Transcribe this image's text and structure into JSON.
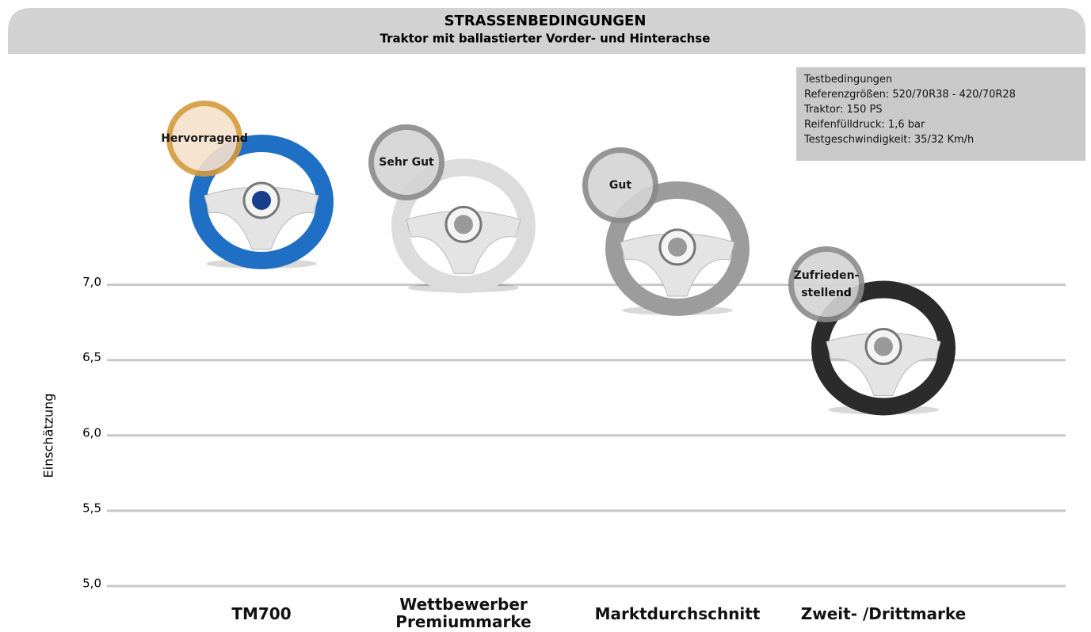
{
  "chart_data": {
    "type": "wheel-scatter",
    "title": "STRASSENBEDINGUNGEN",
    "subtitle": "Traktor mit ballastierter Vorder- und Hinterachse",
    "y_label": "Einschätzung",
    "categories": [
      "TM700",
      "Wettbewerber\nPremiummarke",
      "Marktdurchschnitt",
      "Zweit- /Drittmarke"
    ],
    "values": [
      7.55,
      7.39,
      7.24,
      6.58
    ],
    "ratings": [
      "Hervorragend",
      "Sehr Gut",
      "Gut",
      "Zufrieden-\nstellend"
    ],
    "colors": [
      "#1f6fc4",
      "#dcdcdc",
      "#9c9c9c",
      "#2b2b2b"
    ],
    "badge_colors": [
      "#f6e1cc",
      "#d4d4d4",
      "#d4d4d4",
      "#d4d4d4"
    ],
    "badge_borders": [
      "#d49a3a",
      "#8a8a8a",
      "#8a8a8a",
      "#8a8a8a"
    ],
    "ylim": [
      5,
      8.47
    ],
    "yticks": [
      {
        "value": 5,
        "label": "5,0"
      },
      {
        "value": 5.5,
        "label": "5,5"
      },
      {
        "value": 6,
        "label": "6,0"
      },
      {
        "value": 6.5,
        "label": "6,5"
      },
      {
        "value": 7,
        "label": "7,0"
      }
    ],
    "grid": true,
    "notes": [
      "Testbedingungen",
      "Referenzgrößen: 520/70R38 - 420/70R28",
      "Traktor: 150 PS",
      "Reifenfülldruck: 1,6 bar",
      "Testgeschwindigkeit: 35/32 Km/h"
    ]
  }
}
